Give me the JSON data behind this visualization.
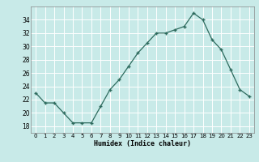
{
  "x": [
    0,
    1,
    2,
    3,
    4,
    5,
    6,
    7,
    8,
    9,
    10,
    11,
    12,
    13,
    14,
    15,
    16,
    17,
    18,
    19,
    20,
    21,
    22,
    23
  ],
  "y": [
    23,
    21.5,
    21.5,
    20,
    18.5,
    18.5,
    18.5,
    21,
    23.5,
    25,
    27,
    29,
    30.5,
    32,
    32,
    32.5,
    33,
    35,
    34,
    31,
    29.5,
    26.5,
    23.5,
    22.5
  ],
  "line_color": "#2e6b5e",
  "marker_color": "#2e6b5e",
  "bg_color": "#c8eae8",
  "grid_color": "#ffffff",
  "xlabel": "Humidex (Indice chaleur)",
  "ylim": [
    17,
    36
  ],
  "xlim": [
    -0.5,
    23.5
  ],
  "yticks": [
    18,
    20,
    22,
    24,
    26,
    28,
    30,
    32,
    34
  ],
  "xtick_labels": [
    "0",
    "1",
    "2",
    "3",
    "4",
    "5",
    "6",
    "7",
    "8",
    "9",
    "10",
    "11",
    "12",
    "13",
    "14",
    "15",
    "16",
    "17",
    "18",
    "19",
    "20",
    "21",
    "22",
    "23"
  ]
}
